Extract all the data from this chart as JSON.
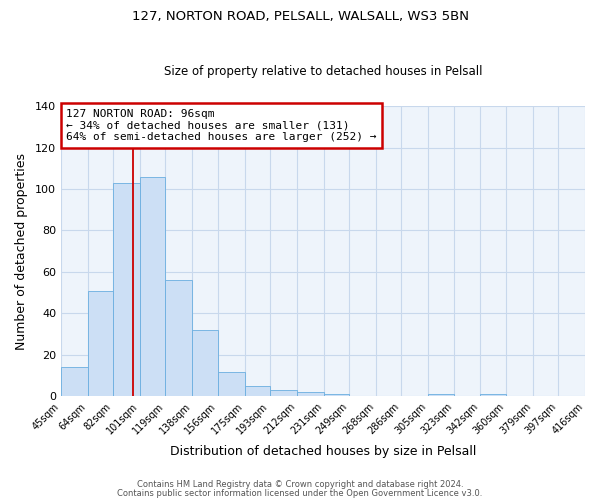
{
  "title1": "127, NORTON ROAD, PELSALL, WALSALL, WS3 5BN",
  "title2": "Size of property relative to detached houses in Pelsall",
  "xlabel": "Distribution of detached houses by size in Pelsall",
  "ylabel": "Number of detached properties",
  "bar_values": [
    14,
    51,
    103,
    106,
    56,
    32,
    12,
    5,
    3,
    2,
    1,
    0,
    0,
    0,
    1,
    0,
    1,
    0,
    0,
    0
  ],
  "bin_labels": [
    "45sqm",
    "64sqm",
    "82sqm",
    "101sqm",
    "119sqm",
    "138sqm",
    "156sqm",
    "175sqm",
    "193sqm",
    "212sqm",
    "231sqm",
    "249sqm",
    "268sqm",
    "286sqm",
    "305sqm",
    "323sqm",
    "342sqm",
    "360sqm",
    "379sqm",
    "397sqm",
    "416sqm"
  ],
  "bar_color": "#ccdff5",
  "bar_edge_color": "#6aaee0",
  "property_line_x": 96,
  "property_line_label": "127 NORTON ROAD: 96sqm",
  "annotation_line1": "← 34% of detached houses are smaller (131)",
  "annotation_line2": "64% of semi-detached houses are larger (252) →",
  "annotation_box_color": "#ffffff",
  "annotation_box_edge_color": "#cc0000",
  "vline_color": "#cc0000",
  "ylim": [
    0,
    140
  ],
  "yticks": [
    0,
    20,
    40,
    60,
    80,
    100,
    120,
    140
  ],
  "bin_edges": [
    45,
    64,
    82,
    101,
    119,
    138,
    156,
    175,
    193,
    212,
    231,
    249,
    268,
    286,
    305,
    323,
    342,
    360,
    379,
    397,
    416
  ],
  "footer1": "Contains HM Land Registry data © Crown copyright and database right 2024.",
  "footer2": "Contains public sector information licensed under the Open Government Licence v3.0.",
  "bg_color": "#ffffff",
  "plot_bg_color": "#eef4fb",
  "grid_color": "#c8d8ec"
}
